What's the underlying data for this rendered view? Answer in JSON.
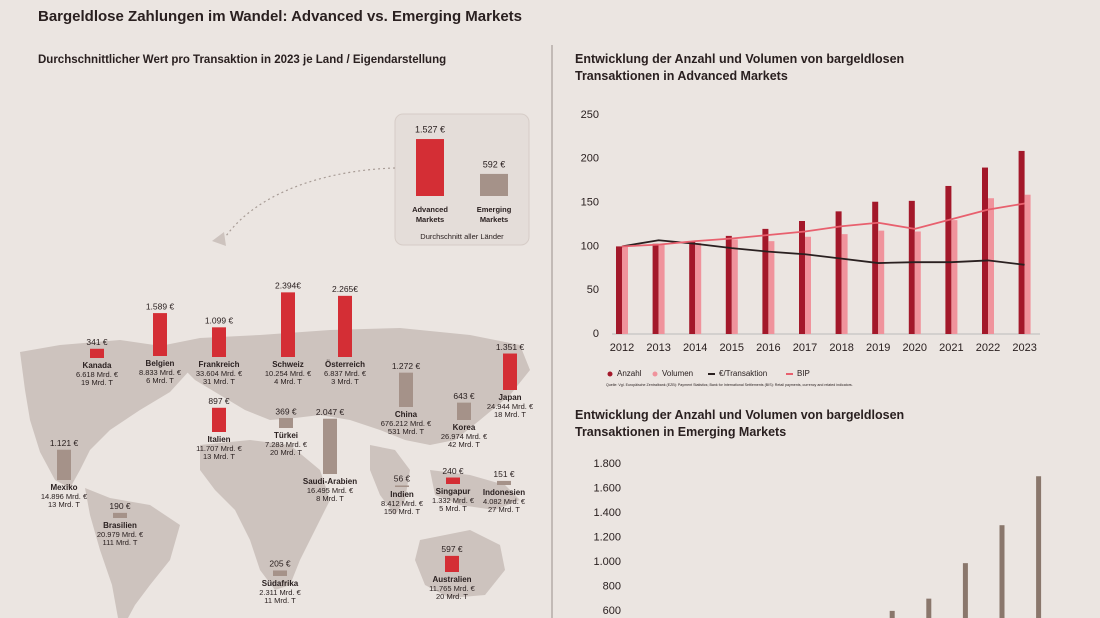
{
  "title": "Bargeldlose Zahlungen im Wandel: Advanced vs. Emerging Markets",
  "chart_data": [
    {
      "type": "map",
      "title": "Durchschnittlicher Wert pro Transaktion in 2023 je Land / Eigendarstellung",
      "categories": [
        "Kanada",
        "Belgien",
        "Frankreich",
        "Schweiz",
        "Österreich",
        "Japan",
        "Italien",
        "Türkei",
        "Saudi-Arabien",
        "China",
        "Korea",
        "Mexiko",
        "Brasilien",
        "Indien",
        "Singapur",
        "Indonesien",
        "Südafrika",
        "Australien"
      ],
      "values": [
        341,
        1589,
        1099,
        2394,
        2265,
        1351,
        897,
        369,
        2047,
        1272,
        643,
        1121,
        190,
        56,
        240,
        151,
        205,
        597
      ],
      "value_labels": [
        "341 €",
        "1.589 €",
        "1.099 €",
        "2.394€",
        "2.265€",
        "1.351 €",
        "897 €",
        "369 €",
        "2.047 €",
        "1.272 €",
        "643 €",
        "1.121 €",
        "190 €",
        "56 €",
        "240 €",
        "151 €",
        "205 €",
        "597 €"
      ],
      "volumes": [
        "6.618 Mrd. €",
        "8.833 Mrd. €",
        "33.604 Mrd. €",
        "10.254 Mrd. €",
        "6.837 Mrd. €",
        "24.944 Mrd. €",
        "11.707 Mrd. €",
        "7.283 Mrd. €",
        "16.495 Mrd. €",
        "676.212 Mrd. €",
        "26.974 Mrd. €",
        "14.896 Mrd. €",
        "20.979 Mrd. €",
        "8.412 Mrd. €",
        "1.332 Mrd. €",
        "4.082 Mrd. €",
        "2.311 Mrd. €",
        "11.765 Mrd. €"
      ],
      "counts": [
        "19 Mrd. T",
        "6 Mrd. T",
        "31 Mrd. T",
        "4 Mrd. T",
        "3 Mrd. T",
        "18 Mrd. T",
        "13 Mrd. T",
        "20 Mrd. T",
        "8 Mrd. T",
        "531 Mrd. T",
        "42 Mrd. T",
        "13 Mrd. T",
        "111 Mrd. T",
        "150 Mrd. T",
        "5 Mrd. T",
        "27 Mrd. T",
        "11 Mrd. T",
        "20 Mrd. T"
      ],
      "colors": [
        "#d42e35",
        "#d42e35",
        "#d42e35",
        "#d42e35",
        "#d42e35",
        "#d42e35",
        "#d42e35",
        "#a59289",
        "#a59289",
        "#a59289",
        "#a59289",
        "#a59289",
        "#a59289",
        "#a59289",
        "#d42e35",
        "#a59289",
        "#a59289",
        "#d42e35"
      ]
    },
    {
      "type": "bar",
      "categories": [
        "Advanced Markets",
        "Emerging Markets"
      ],
      "values": [
        1527,
        592
      ],
      "value_labels": [
        "1.527 €",
        "592 €"
      ],
      "colors": [
        "#d42e35",
        "#a59289"
      ],
      "caption": "Durchschnitt aller Länder"
    },
    {
      "type": "combo",
      "title": "Entwicklung der Anzahl und Volumen von bargeldlosen Transaktionen in Advanced Markets",
      "categories": [
        "2012",
        "2013",
        "2014",
        "2015",
        "2016",
        "2017",
        "2018",
        "2019",
        "2020",
        "2021",
        "2022",
        "2023"
      ],
      "series": [
        {
          "name": "Anzahl",
          "kind": "bar",
          "color": "#a3182a",
          "values": [
            100,
            103,
            106,
            112,
            120,
            129,
            140,
            151,
            152,
            169,
            190,
            209
          ]
        },
        {
          "name": "Volumen",
          "kind": "bar",
          "color": "#f0939c",
          "values": [
            100,
            102,
            104,
            108,
            106,
            111,
            114,
            118,
            117,
            130,
            155,
            159
          ]
        },
        {
          "name": "€/Transaktion",
          "kind": "line",
          "color": "#2a2020",
          "values": [
            100,
            107,
            103,
            98,
            94,
            91,
            86,
            81,
            82,
            82,
            84,
            79
          ]
        },
        {
          "name": "BIP",
          "kind": "line",
          "color": "#e8606e",
          "values": [
            100,
            102,
            106,
            109,
            113,
            117,
            123,
            127,
            120,
            131,
            142,
            149
          ]
        }
      ],
      "ylim": [
        0,
        250
      ],
      "yticks": [
        0,
        50,
        100,
        150,
        200,
        250
      ],
      "source": "Quelle: Vgl. Europäische Zentralbank (EZB): Payment Statistics; Bank for International Settlements (BIS): Retail payments, currency and related indicators."
    },
    {
      "type": "column",
      "title": "Entwicklung der Anzahl und Volumen von bargeldlosen Transaktionen in Emerging Markets",
      "categories": [
        null,
        null,
        null,
        null,
        null
      ],
      "values": [
        600,
        700,
        990,
        1300,
        1700
      ],
      "color": "#8a776c",
      "ylim": [
        550,
        1800
      ],
      "yticks": [
        {
          "value": 600,
          "label": "600"
        },
        {
          "value": 800,
          "label": "800"
        },
        {
          "value": 1000,
          "label": "1.000"
        },
        {
          "value": 1200,
          "label": "1.200"
        },
        {
          "value": 1400,
          "label": "1.400"
        },
        {
          "value": 1600,
          "label": "1.600"
        },
        {
          "value": 1800,
          "label": "1.800"
        }
      ]
    }
  ]
}
